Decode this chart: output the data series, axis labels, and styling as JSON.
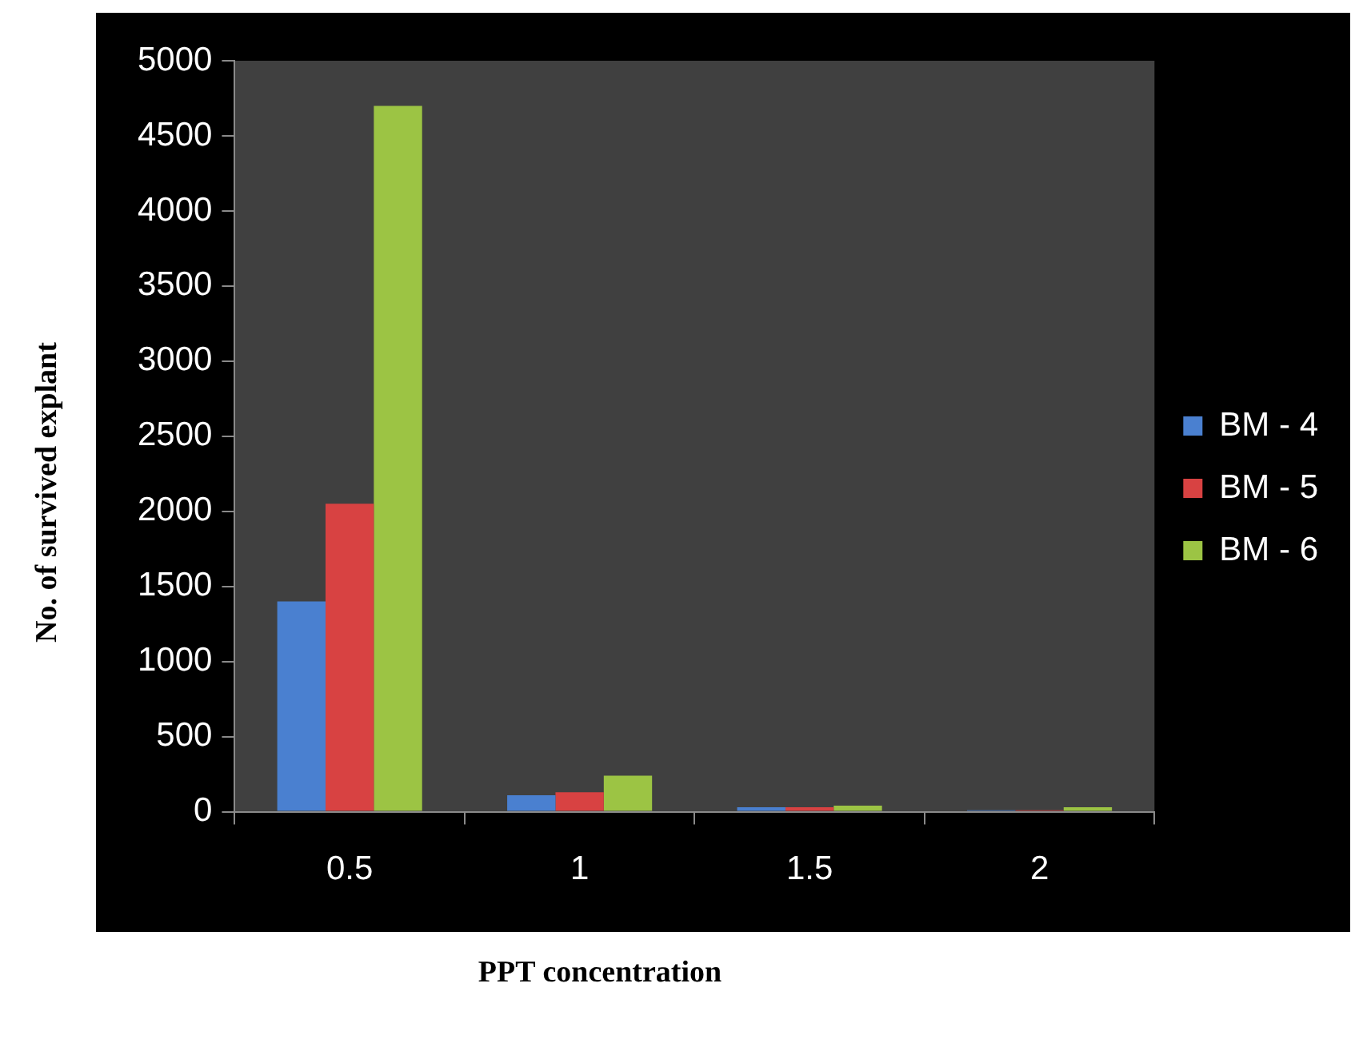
{
  "chart_data": {
    "type": "bar",
    "xlabel": "PPT concentration",
    "ylabel": "No. of survived explant",
    "categories": [
      "0.5",
      "1",
      "1.5",
      "2"
    ],
    "series": [
      {
        "name": "BM - 4",
        "color": "#4a80d0",
        "values": [
          1400,
          110,
          30,
          10
        ]
      },
      {
        "name": "BM - 5",
        "color": "#d84242",
        "values": [
          2050,
          130,
          30,
          10
        ]
      },
      {
        "name": "BM - 6",
        "color": "#9cc444",
        "values": [
          4700,
          240,
          40,
          30
        ]
      }
    ],
    "ylim": [
      0,
      5000
    ],
    "yticks": [
      0,
      500,
      1000,
      1500,
      2000,
      2500,
      3000,
      3500,
      4000,
      4500,
      5000
    ],
    "grid": false,
    "legend": "right"
  }
}
